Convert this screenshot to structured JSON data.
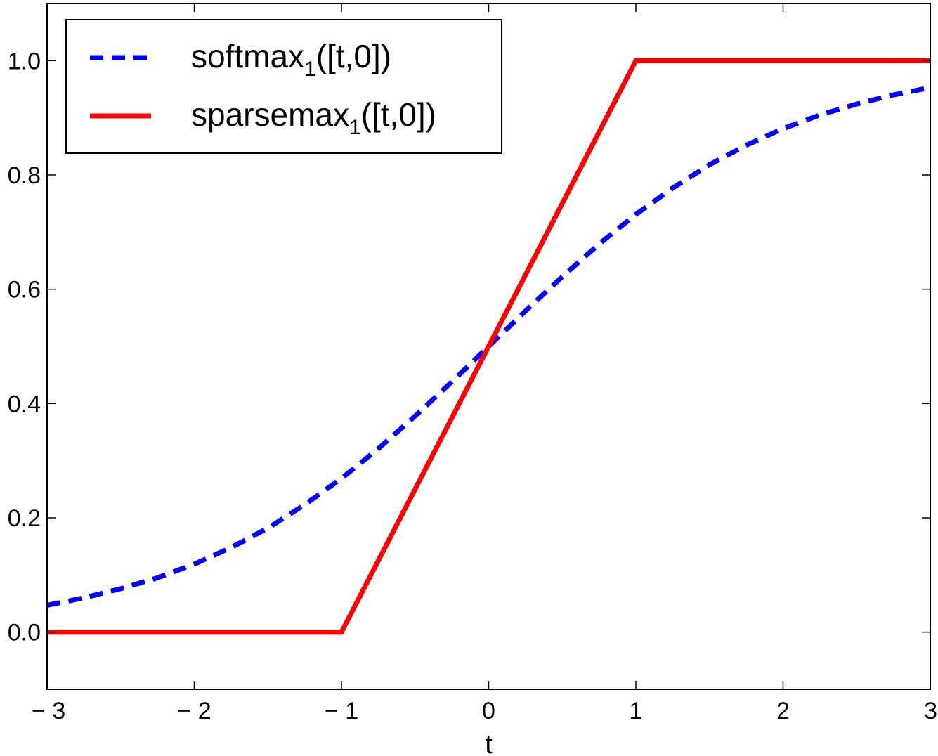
{
  "chart_data": {
    "type": "line",
    "xlabel": "t",
    "ylabel": "",
    "xlim": [
      -3,
      3
    ],
    "ylim": [
      -0.1,
      1.1
    ],
    "xticks": [
      {
        "value": -3,
        "label": "− 3"
      },
      {
        "value": -2,
        "label": "− 2"
      },
      {
        "value": -1,
        "label": "− 1"
      },
      {
        "value": 0,
        "label": "0"
      },
      {
        "value": 1,
        "label": "1"
      },
      {
        "value": 2,
        "label": "2"
      },
      {
        "value": 3,
        "label": "3"
      }
    ],
    "yticks": [
      {
        "value": 0.0,
        "label": "0.0"
      },
      {
        "value": 0.2,
        "label": "0.2"
      },
      {
        "value": 0.4,
        "label": "0.4"
      },
      {
        "value": 0.6,
        "label": "0.6"
      },
      {
        "value": 0.8,
        "label": "0.8"
      },
      {
        "value": 1.0,
        "label": "1.0"
      }
    ],
    "grid": false,
    "legend_position": "top-left",
    "series": [
      {
        "name": "softmax1([t,0])",
        "name_main": "softmax",
        "name_sub": "1",
        "name_rest": "([t,0])",
        "style": "dashed",
        "color": "#0000ff",
        "x": [
          -3,
          -2.75,
          -2.5,
          -2.25,
          -2,
          -1.75,
          -1.5,
          -1.25,
          -1,
          -0.75,
          -0.5,
          -0.25,
          0,
          0.25,
          0.5,
          0.75,
          1,
          1.25,
          1.5,
          1.75,
          2,
          2.25,
          2.5,
          2.75,
          3
        ],
        "y": [
          0.047,
          0.06,
          0.076,
          0.095,
          0.119,
          0.148,
          0.182,
          0.223,
          0.269,
          0.321,
          0.378,
          0.438,
          0.5,
          0.562,
          0.622,
          0.679,
          0.731,
          0.777,
          0.818,
          0.852,
          0.881,
          0.905,
          0.924,
          0.94,
          0.953
        ]
      },
      {
        "name": "sparsemax1([t,0])",
        "name_main": "sparsemax",
        "name_sub": "1",
        "name_rest": "([t,0])",
        "style": "solid",
        "color": "#ff0000",
        "x": [
          -3,
          -1,
          1,
          3
        ],
        "y": [
          0,
          0,
          1,
          1
        ]
      }
    ]
  }
}
